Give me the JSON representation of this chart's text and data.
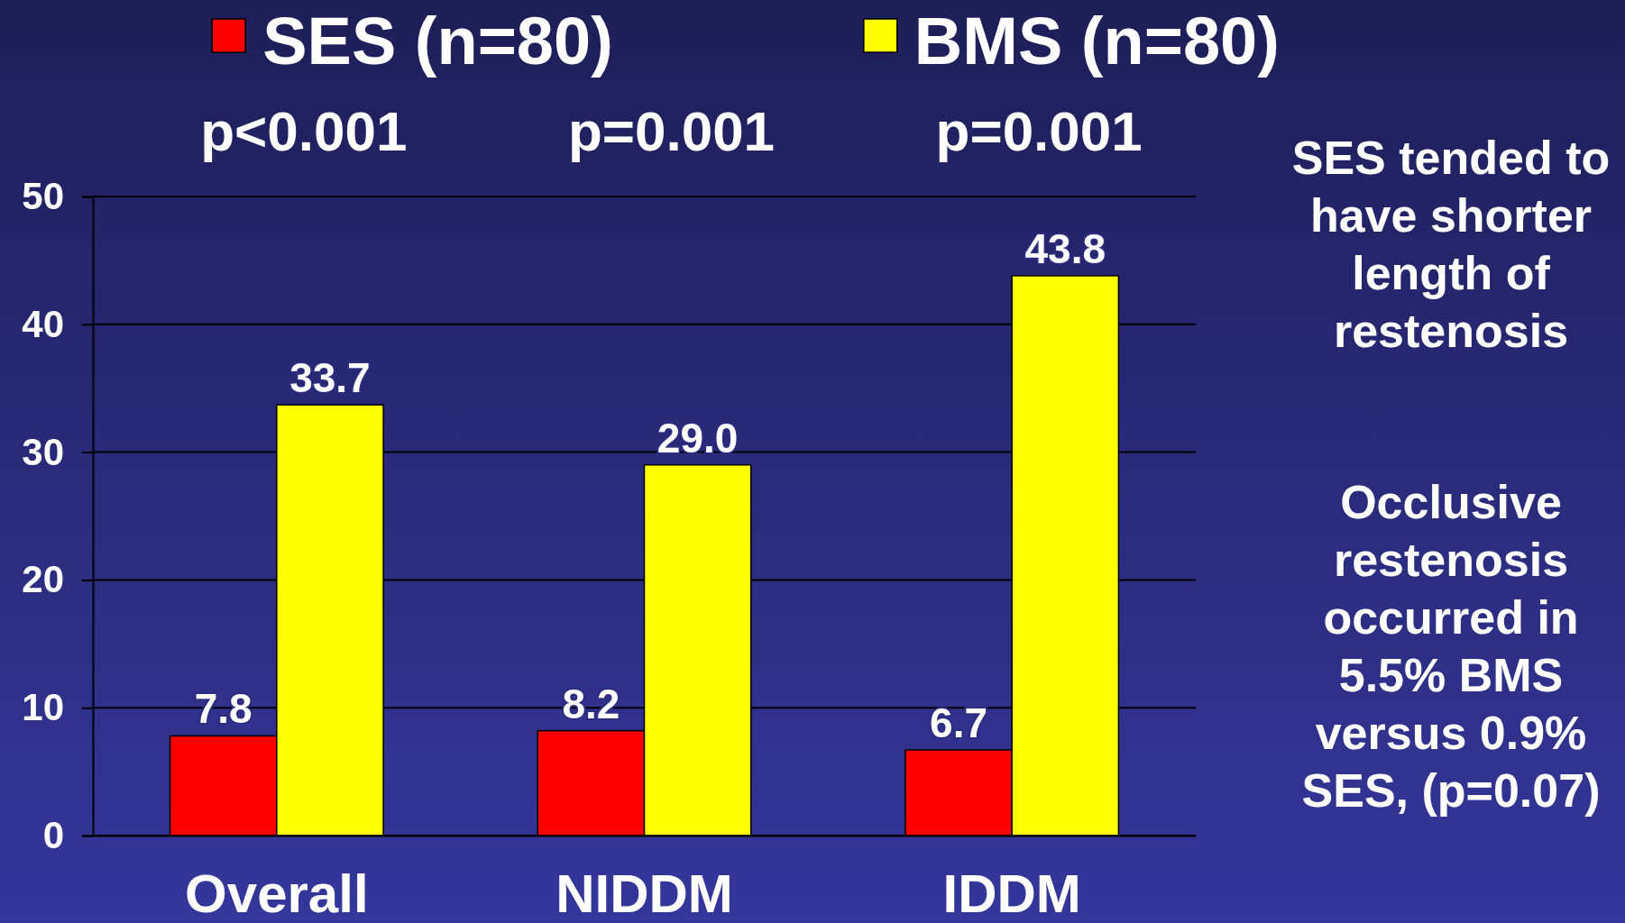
{
  "chart_data": {
    "type": "bar",
    "categories": [
      "Overall",
      "NIDDM",
      "IDDM"
    ],
    "series": [
      {
        "name": "SES (n=80)",
        "color": "#ff0000",
        "values": [
          7.8,
          8.2,
          6.7
        ],
        "value_labels": [
          "7.8",
          "8.2",
          "6.7"
        ]
      },
      {
        "name": "BMS (n=80)",
        "color": "#ffff00",
        "values": [
          33.7,
          29.0,
          43.8
        ],
        "value_labels": [
          "33.7",
          "29.0",
          "43.8"
        ]
      }
    ],
    "ylim": [
      0,
      50
    ],
    "yticks": [
      0,
      10,
      20,
      30,
      40,
      50
    ],
    "grid": "y",
    "legend": "top",
    "annotations": [
      "p<0.001",
      "p=0.001",
      "p=0.001",
      "SES tended to have shorter length of restenosis",
      "Occlusive restenosis occurred in 5.5% BMS versus 0.9% SES, (p=0.07)"
    ]
  }
}
